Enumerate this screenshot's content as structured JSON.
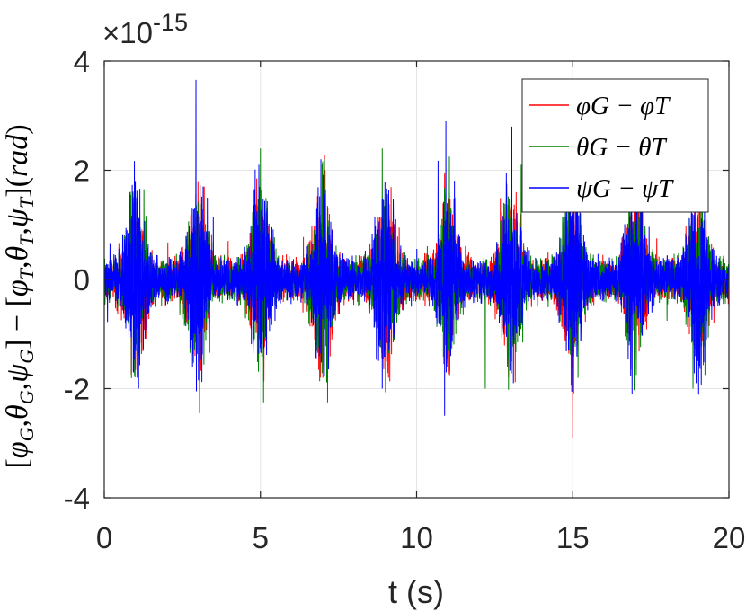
{
  "chart_data": {
    "type": "line",
    "title": "",
    "xlabel": "t (s)",
    "ylabel": "[φG,θG,ψG] − [φT,θT,ψT](rad)",
    "y_exponent_label": "×10",
    "y_exponent": "-15",
    "xlim": [
      0,
      20
    ],
    "ylim": [
      -4,
      4
    ],
    "x_ticks": [
      0,
      5,
      10,
      15,
      20
    ],
    "x_tick_labels": [
      "0",
      "5",
      "10",
      "15",
      "20"
    ],
    "y_ticks": [
      -4,
      -2,
      0,
      2,
      4
    ],
    "y_tick_labels": [
      "-4",
      "-2",
      "0",
      "2",
      "4"
    ],
    "grid": true,
    "legend_position": "top-right",
    "colors": {
      "red": "#ff0000",
      "green": "#008000",
      "blue": "#0000ff",
      "axes": "#262626",
      "grid": "#e5e5e5"
    },
    "noise_model": {
      "t_start": 0,
      "t_end": 20,
      "n_points": 4000,
      "burst_centers": [
        1,
        3,
        5,
        7,
        9,
        11,
        13,
        15,
        17,
        19
      ],
      "burst_width": 0.35,
      "base_amplitude": 0.22,
      "burst_amplitude": 0.85
    },
    "series": [
      {
        "name": "φG − φT",
        "color": "#ff0000",
        "peaks": [
          {
            "t": 3.0,
            "v": 1.8
          },
          {
            "t": 3.2,
            "v": 1.7
          },
          {
            "t": 7.0,
            "v": -1.8
          },
          {
            "t": 9.1,
            "v": -1.8
          },
          {
            "t": 15.0,
            "v": -2.9
          },
          {
            "t": 18.9,
            "v": 1.7
          }
        ]
      },
      {
        "name": "θG − θT",
        "color": "#008000",
        "peaks": [
          {
            "t": 0.85,
            "v": 1.55
          },
          {
            "t": 1.05,
            "v": -1.8
          },
          {
            "t": 3.05,
            "v": -2.45
          },
          {
            "t": 5.0,
            "v": 2.4
          },
          {
            "t": 5.1,
            "v": -2.25
          },
          {
            "t": 7.05,
            "v": 2.2
          },
          {
            "t": 7.15,
            "v": -2.25
          },
          {
            "t": 8.9,
            "v": 2.4
          },
          {
            "t": 11.05,
            "v": 2.25
          },
          {
            "t": 12.2,
            "v": -2.0
          },
          {
            "t": 13.35,
            "v": 2.1
          },
          {
            "t": 14.9,
            "v": 1.8
          },
          {
            "t": 16.8,
            "v": 2.0
          },
          {
            "t": 18.85,
            "v": -2.0
          }
        ]
      },
      {
        "name": "ψG − ψT",
        "color": "#0000ff",
        "peaks": [
          {
            "t": 1.1,
            "v": -2.0
          },
          {
            "t": 2.95,
            "v": -2.05
          },
          {
            "t": 4.95,
            "v": 2.1
          },
          {
            "t": 8.9,
            "v": -2.0
          },
          {
            "t": 13.05,
            "v": 2.8
          },
          {
            "t": 13.1,
            "v": -1.9
          },
          {
            "t": 16.9,
            "v": -2.1
          },
          {
            "t": 18.95,
            "v": -1.9
          }
        ]
      }
    ]
  }
}
